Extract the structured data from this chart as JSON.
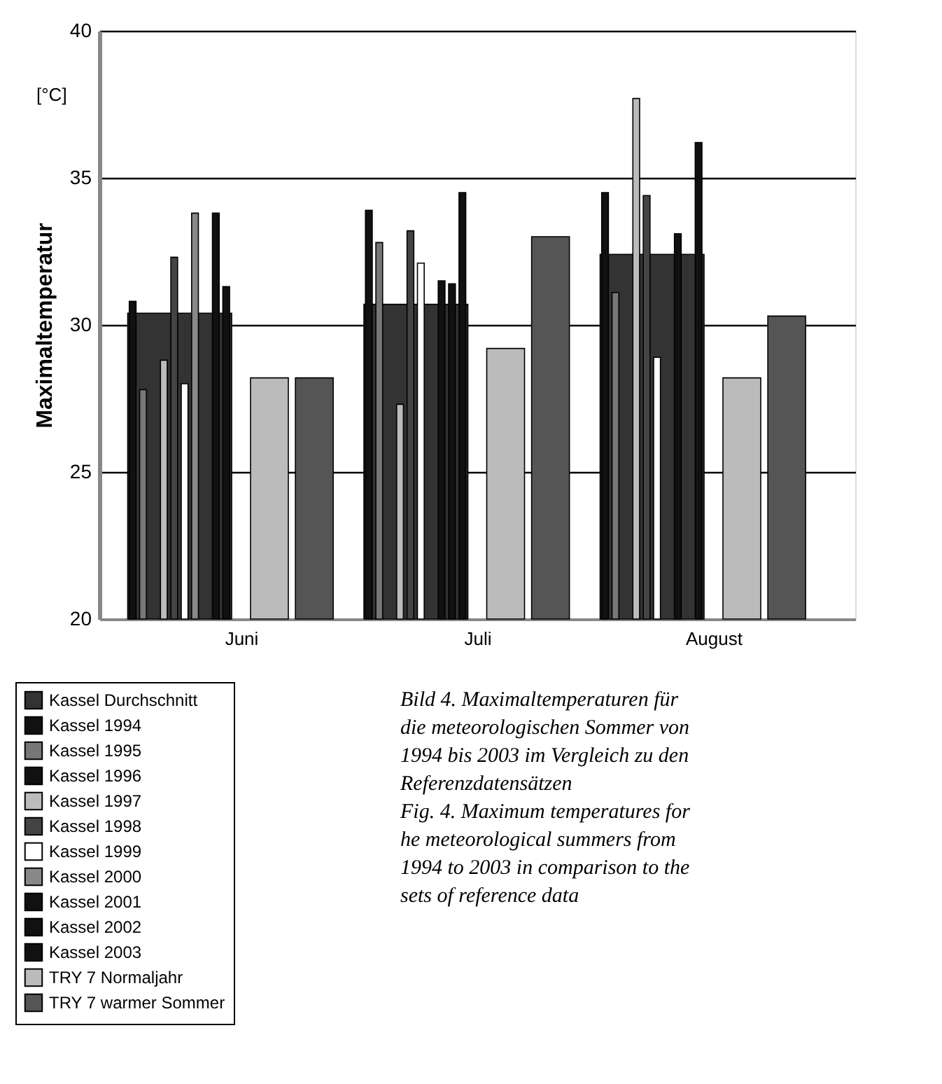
{
  "chart_data": {
    "type": "bar",
    "ylabel": "Maximaltemperatur",
    "categories": [
      "Juni",
      "Juli",
      "August"
    ],
    "ylim": [
      20,
      40
    ],
    "yticks": [
      20,
      25,
      30,
      35,
      40
    ],
    "grid": "y",
    "legend": "bottom left",
    "series": [
      {
        "name": "Kassel Durchschnitt",
        "color": "#333333",
        "values": [
          30.4,
          30.7,
          32.4
        ]
      },
      {
        "name": "Kassel 1994",
        "color": "#111111",
        "values": [
          30.8,
          33.9,
          34.5
        ]
      },
      {
        "name": "Kassel 1995",
        "color": "#777777",
        "values": [
          27.8,
          32.8,
          31.1
        ]
      },
      {
        "name": "Kassel 1996",
        "color": "#111111",
        "values": [
          null,
          null,
          null
        ]
      },
      {
        "name": "Kassel 1997",
        "color": "#bbbbbb",
        "values": [
          28.8,
          27.3,
          37.7
        ]
      },
      {
        "name": "Kassel 1998",
        "color": "#444444",
        "values": [
          32.3,
          33.2,
          34.4
        ]
      },
      {
        "name": "Kassel 1999",
        "color": "#ffffff",
        "values": [
          28.0,
          32.1,
          28.9
        ]
      },
      {
        "name": "Kassel 2000",
        "color": "#888888",
        "values": [
          33.8,
          null,
          null
        ]
      },
      {
        "name": "Kassel 2001",
        "color": "#111111",
        "values": [
          null,
          31.5,
          33.1
        ]
      },
      {
        "name": "Kassel 2002",
        "color": "#111111",
        "values": [
          33.8,
          31.4,
          null
        ]
      },
      {
        "name": "Kassel 2003",
        "color": "#111111",
        "values": [
          31.3,
          34.5,
          36.2
        ]
      },
      {
        "name": "TRY 7 Normaljahr",
        "color": "#bbbbbb",
        "values": [
          28.2,
          29.2,
          28.2
        ]
      },
      {
        "name": "TRY 7 warmer Sommer",
        "color": "#555555",
        "values": [
          28.2,
          33.0,
          30.3
        ]
      }
    ],
    "annotations": [
      "[°C]",
      "Bild 4. Maximaltemperaturen für die meteorologischen Sommer von 1994 bis 2003 im Vergleich zu den Referenzdatensätzen",
      "Fig. 4. Maximum temperatures for he meteorological summers from 1994 to 2003 in comparison to the sets of reference data"
    ]
  }
}
